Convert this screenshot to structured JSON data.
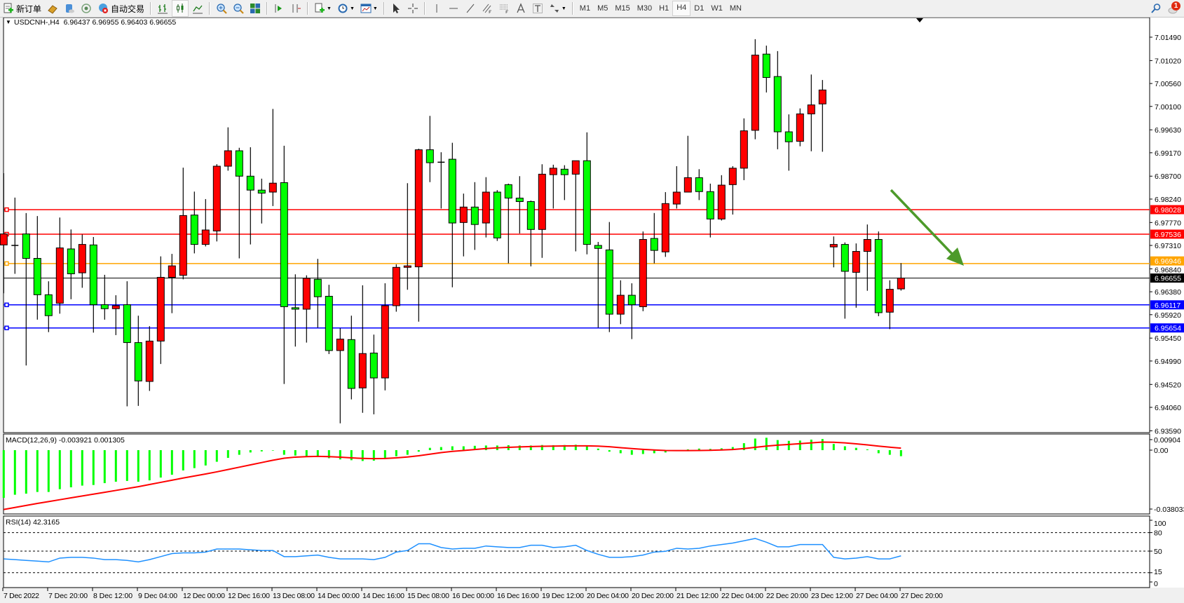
{
  "toolbar": {
    "new_order_label": "新订单",
    "auto_trading_label": "自动交易",
    "timeframes": [
      "M1",
      "M5",
      "M15",
      "M30",
      "H1",
      "H4",
      "D1",
      "W1",
      "MN"
    ],
    "active_timeframe": "H4",
    "notification_count": "1"
  },
  "chart": {
    "header": "USDCNH-,H4  6.96437 6.96955 6.96403 6.96655",
    "symbol": "USDCNH-",
    "timeframe": "H4",
    "ohlc_current": {
      "open": 6.96437,
      "high": 6.96955,
      "low": 6.96403,
      "close": 6.96655
    },
    "colors": {
      "bull_body": "#ff0000",
      "bear_body": "#00ff00",
      "wick": "#000000",
      "arrow": "#4d9a2a"
    }
  },
  "chart_data": [
    {
      "type": "candlestick",
      "title": "USDCNH-,H4",
      "x_tick_labels": [
        "7 Dec 2022",
        "7 Dec 20:00",
        "8 Dec 12:00",
        "9 Dec 04:00",
        "12 Dec 00:00",
        "12 Dec 16:00",
        "13 Dec 08:00",
        "14 Dec 00:00",
        "14 Dec 16:00",
        "15 Dec 08:00",
        "16 Dec 00:00",
        "16 Dec 16:00",
        "19 Dec 12:00",
        "20 Dec 04:00",
        "20 Dec 20:00",
        "21 Dec 12:00",
        "22 Dec 04:00",
        "22 Dec 20:00",
        "23 Dec 12:00",
        "27 Dec 04:00",
        "27 Dec 20:00"
      ],
      "y_tick_labels": [
        "7.01490",
        "7.01020",
        "7.00560",
        "7.00100",
        "6.99630",
        "6.99170",
        "6.98700",
        "6.98240",
        "6.97770",
        "6.97310",
        "6.96840",
        "6.96380",
        "6.95920",
        "6.95450",
        "6.94990",
        "6.94520",
        "6.94060",
        "6.93590"
      ],
      "ylim": [
        6.9359,
        7.0149
      ],
      "ohlc": [
        [
          6.9732,
          6.9876,
          6.9635,
          6.9754
        ],
        [
          6.9731,
          6.9827,
          6.9674,
          6.9731
        ],
        [
          6.9754,
          6.9796,
          6.949,
          6.9705
        ],
        [
          6.9705,
          6.979,
          6.9582,
          6.9632
        ],
        [
          6.9632,
          6.9659,
          6.9557,
          6.959
        ],
        [
          6.9615,
          6.9787,
          6.9594,
          6.9726
        ],
        [
          6.9724,
          6.9763,
          6.9623,
          6.9674
        ],
        [
          6.9676,
          6.9753,
          6.9646,
          6.9733
        ],
        [
          6.9732,
          6.9748,
          6.9556,
          6.9612
        ],
        [
          6.9612,
          6.9672,
          6.9582,
          6.9604
        ],
        [
          6.9604,
          6.9631,
          6.9551,
          6.961
        ],
        [
          6.9612,
          6.9659,
          6.9408,
          6.9536
        ],
        [
          6.9536,
          6.959,
          6.9409,
          6.9459
        ],
        [
          6.9458,
          6.9569,
          6.9439,
          6.9539
        ],
        [
          6.9539,
          6.9709,
          6.9493,
          6.9667
        ],
        [
          6.9667,
          6.9714,
          6.9595,
          6.969
        ],
        [
          6.9671,
          6.9887,
          6.9663,
          6.9791
        ],
        [
          6.9792,
          6.9839,
          6.9715,
          6.9733
        ],
        [
          6.9733,
          6.9824,
          6.9729,
          6.9762
        ],
        [
          6.976,
          6.9894,
          6.9739,
          6.989
        ],
        [
          6.989,
          6.9968,
          6.9881,
          6.9921
        ],
        [
          6.9921,
          6.9927,
          6.9705,
          6.987
        ],
        [
          6.987,
          6.9928,
          6.9733,
          6.9842
        ],
        [
          6.9842,
          6.9865,
          6.9775,
          6.9836
        ],
        [
          6.9838,
          7.0005,
          6.981,
          6.9856
        ],
        [
          6.9857,
          6.9931,
          6.9453,
          6.9608
        ],
        [
          6.9606,
          6.9673,
          6.9528,
          6.9603
        ],
        [
          6.9603,
          6.9671,
          6.9536,
          6.9665
        ],
        [
          6.9663,
          6.9704,
          6.9566,
          6.9628
        ],
        [
          6.9629,
          6.9652,
          6.9513,
          6.952
        ],
        [
          6.952,
          6.9565,
          6.9374,
          6.9543
        ],
        [
          6.9542,
          6.959,
          6.9422,
          6.9444
        ],
        [
          6.9445,
          6.9651,
          6.9395,
          6.9514
        ],
        [
          6.9515,
          6.9552,
          6.9392,
          6.9465
        ],
        [
          6.9465,
          6.9655,
          6.944,
          6.961
        ],
        [
          6.961,
          6.9693,
          6.9598,
          6.9687
        ],
        [
          6.9687,
          6.9856,
          6.9642,
          6.969
        ],
        [
          6.9688,
          6.9925,
          6.9578,
          6.9923
        ],
        [
          6.9923,
          6.9991,
          6.9858,
          6.9897
        ],
        [
          6.9898,
          6.9918,
          6.9805,
          6.9897
        ],
        [
          6.9904,
          6.9937,
          6.9647,
          6.9776
        ],
        [
          6.9777,
          6.9835,
          6.9709,
          6.9808
        ],
        [
          6.9808,
          6.9858,
          6.9722,
          6.9773
        ],
        [
          6.9776,
          6.9868,
          6.9747,
          6.9838
        ],
        [
          6.9838,
          6.9842,
          6.974,
          6.9746
        ],
        [
          6.9853,
          6.9855,
          6.9695,
          6.9826
        ],
        [
          6.9826,
          6.987,
          6.9755,
          6.9819
        ],
        [
          6.9819,
          6.9821,
          6.9689,
          6.9763
        ],
        [
          6.9763,
          6.9894,
          6.9706,
          6.9874
        ],
        [
          6.9873,
          6.9893,
          6.9805,
          6.9886
        ],
        [
          6.9884,
          6.9892,
          6.9822,
          6.9873
        ],
        [
          6.9874,
          6.9901,
          6.9719,
          6.9901
        ],
        [
          6.9901,
          6.9958,
          6.9713,
          6.9733
        ],
        [
          6.9731,
          6.9738,
          6.9566,
          6.9725
        ],
        [
          6.9722,
          6.9778,
          6.9557,
          6.9593
        ],
        [
          6.9593,
          6.9661,
          6.9573,
          6.9631
        ],
        [
          6.9631,
          6.9655,
          6.9543,
          6.9612
        ],
        [
          6.9608,
          6.9759,
          6.9599,
          6.9743
        ],
        [
          6.9745,
          6.9796,
          6.9695,
          6.9721
        ],
        [
          6.9718,
          6.9838,
          6.9708,
          6.9815
        ],
        [
          6.9814,
          6.989,
          6.9805,
          6.9838
        ],
        [
          6.9838,
          6.9951,
          6.9838,
          6.9867
        ],
        [
          6.9867,
          6.9884,
          6.9822,
          6.9839
        ],
        [
          6.9839,
          6.9855,
          6.9747,
          6.9784
        ],
        [
          6.9784,
          6.9872,
          6.9781,
          6.9852
        ],
        [
          6.9853,
          6.989,
          6.9793,
          6.9886
        ],
        [
          6.9886,
          6.9986,
          6.9862,
          6.9961
        ],
        [
          6.9962,
          7.0145,
          6.9944,
          7.0113
        ],
        [
          7.0115,
          7.0132,
          7.0038,
          7.0068
        ],
        [
          7.007,
          7.0121,
          6.9924,
          6.9959
        ],
        [
          6.9959,
          6.9994,
          6.9881,
          6.9939
        ],
        [
          6.994,
          7.0006,
          6.993,
          6.9995
        ],
        [
          6.9995,
          7.0074,
          6.992,
          7.0013
        ],
        [
          7.0015,
          7.0063,
          6.9919,
          7.0043
        ],
        [
          6.9728,
          6.9749,
          6.9687,
          6.9733
        ],
        [
          6.9733,
          6.9737,
          6.9584,
          6.9679
        ],
        [
          6.9677,
          6.9735,
          6.9606,
          6.9719
        ],
        [
          6.9719,
          6.9773,
          6.964,
          6.9743
        ],
        [
          6.9743,
          6.9759,
          6.9589,
          6.9596
        ],
        [
          6.9597,
          6.9661,
          6.9563,
          6.9643
        ],
        [
          6.96437,
          6.96955,
          6.96403,
          6.96655
        ]
      ],
      "current_price": {
        "value": 6.96655,
        "label": "6.96655",
        "color": "#000000"
      },
      "levels": [
        {
          "value": 6.98028,
          "label": "6.98028",
          "color": "#ff0000"
        },
        {
          "value": 6.97536,
          "label": "6.97536",
          "color": "#ff0000"
        },
        {
          "value": 6.96946,
          "label": "6.96946",
          "color": "#ffa500"
        },
        {
          "value": 6.96117,
          "label": "6.96117",
          "color": "#0000ff"
        },
        {
          "value": 6.95654,
          "label": "6.95654",
          "color": "#0000ff"
        }
      ],
      "annotation": {
        "type": "arrow",
        "direction": "down-right",
        "color": "#4d9a2a"
      }
    },
    {
      "type": "bar+line",
      "title": "MACD(12,26,9) -0.003921 0.001305",
      "y_tick_labels": [
        "0.00904",
        "0.00",
        "-0.038033"
      ],
      "ylim": [
        -0.038033,
        0.00904
      ],
      "series": [
        {
          "kind": "histogram",
          "color": "#00ff00",
          "values": [
            -0.0308,
            -0.0288,
            -0.0281,
            -0.027,
            -0.027,
            -0.0252,
            -0.024,
            -0.0229,
            -0.0225,
            -0.0213,
            -0.0204,
            -0.0199,
            -0.0204,
            -0.0195,
            -0.0177,
            -0.0159,
            -0.0131,
            -0.0116,
            -0.0099,
            -0.0075,
            -0.005,
            -0.003,
            -0.0015,
            -0.0008,
            -0.0003,
            -0.003,
            -0.0035,
            -0.004,
            -0.0042,
            -0.0052,
            -0.006,
            -0.0065,
            -0.007,
            -0.0068,
            -0.0055,
            -0.004,
            -0.003,
            -0.001,
            0.0015,
            0.002,
            0.0025,
            0.0025,
            0.0028,
            0.003,
            0.003,
            0.0032,
            0.003,
            0.003,
            0.0033,
            0.0032,
            0.0033,
            0.0035,
            0.003,
            0.001,
            -0.001,
            -0.002,
            -0.003,
            -0.0025,
            -0.002,
            -0.0015,
            -0.0005,
            0.0005,
            0.001,
            0.0008,
            0.0012,
            0.002,
            0.0045,
            0.0075,
            0.008,
            0.0065,
            0.006,
            0.0062,
            0.0068,
            0.0072,
            0.004,
            0.0025,
            0.0015,
            0.0005,
            -0.002,
            -0.003,
            -0.0039
          ]
        },
        {
          "kind": "signal",
          "color": "#ff0000",
          "values": [
            -0.0383,
            -0.037,
            -0.0357,
            -0.0344,
            -0.0332,
            -0.032,
            -0.0308,
            -0.0296,
            -0.0284,
            -0.0272,
            -0.026,
            -0.0248,
            -0.0236,
            -0.0222,
            -0.0208,
            -0.0194,
            -0.018,
            -0.0167,
            -0.0154,
            -0.014,
            -0.0125,
            -0.011,
            -0.0095,
            -0.008,
            -0.0065,
            -0.0052,
            -0.0045,
            -0.0042,
            -0.004,
            -0.0042,
            -0.0045,
            -0.005,
            -0.0053,
            -0.0055,
            -0.0054,
            -0.005,
            -0.0044,
            -0.0036,
            -0.0026,
            -0.0016,
            -0.0008,
            -0.0002,
            0.0004,
            0.001,
            0.0015,
            0.0018,
            0.0021,
            0.0023,
            0.0025,
            0.0026,
            0.0027,
            0.0028,
            0.0028,
            0.0026,
            0.0022,
            0.0016,
            0.001,
            0.0005,
            0.0001,
            -0.0002,
            -0.0003,
            -0.0003,
            -0.0002,
            -0.0001,
            0.0001,
            0.0004,
            0.001,
            0.0018,
            0.0026,
            0.0032,
            0.0037,
            0.0042,
            0.0047,
            0.0052,
            0.0051,
            0.0047,
            0.0041,
            0.0034,
            0.0026,
            0.0019,
            0.0013
          ]
        }
      ]
    },
    {
      "type": "line",
      "title": "RSI(14) 42.3165",
      "y_tick_labels": [
        "100",
        "80",
        "50",
        "15",
        "0"
      ],
      "levels": [
        80,
        50,
        15
      ],
      "ylim": [
        0,
        100
      ],
      "color": "#1e90ff",
      "values": [
        37.4,
        36.2,
        35.0,
        33.8,
        32.5,
        38.7,
        39.9,
        39.9,
        38.7,
        36.2,
        36.2,
        35.0,
        32.5,
        36.2,
        41.1,
        46.0,
        47.2,
        47.2,
        48.5,
        53.4,
        53.4,
        53.4,
        52.1,
        51.0,
        51.0,
        41.1,
        41.1,
        42.3,
        43.6,
        39.9,
        37.4,
        37.4,
        37.4,
        36.2,
        39.9,
        48.5,
        51.0,
        61.9,
        61.9,
        55.8,
        53.4,
        54.6,
        54.6,
        58.3,
        57.0,
        55.8,
        55.8,
        59.5,
        59.5,
        55.8,
        57.0,
        59.5,
        51.0,
        44.8,
        39.9,
        39.9,
        41.1,
        43.6,
        48.5,
        49.7,
        54.6,
        53.4,
        54.6,
        58.3,
        60.7,
        63.1,
        66.8,
        70.5,
        64.4,
        57.0,
        57.0,
        60.7,
        60.7,
        60.7,
        39.9,
        37.4,
        38.7,
        41.1,
        37.4,
        37.4,
        42.3
      ]
    }
  ]
}
